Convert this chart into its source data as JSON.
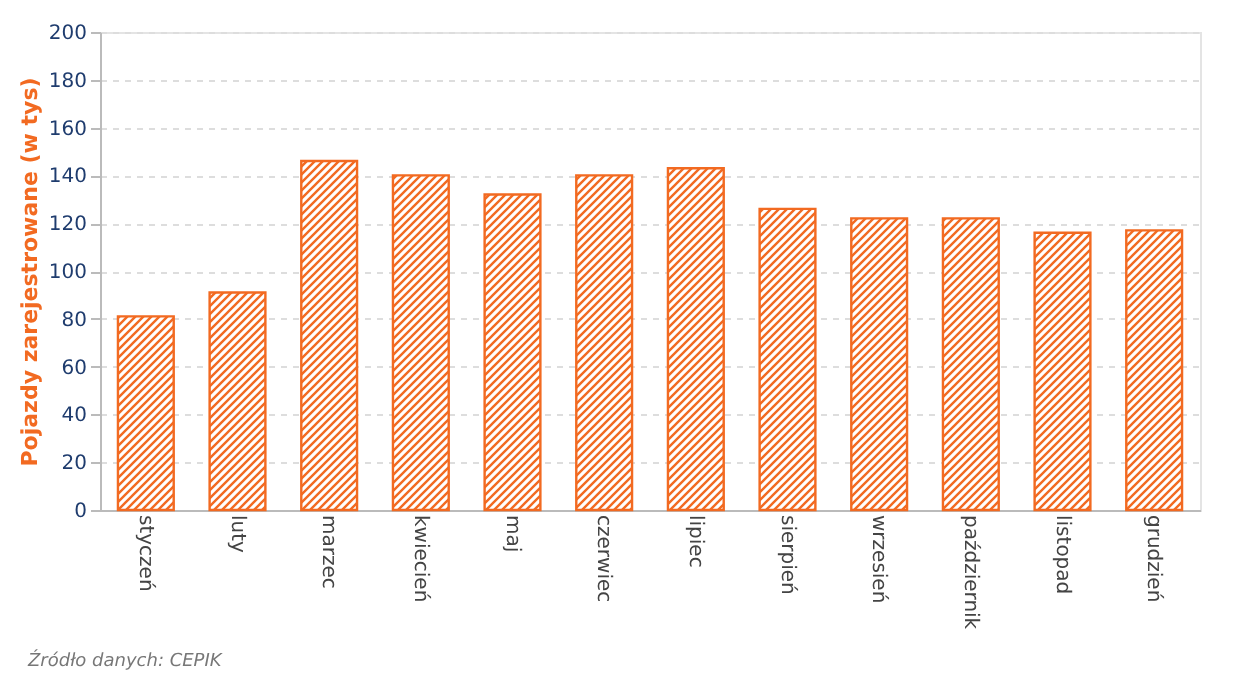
{
  "chart_data": {
    "type": "bar",
    "ylabel": "Pojazdy zarejestrowane (w tys)",
    "categories": [
      "styczeń",
      "luty",
      "marzec",
      "kwiecień",
      "maj",
      "czerwiec",
      "lipiec",
      "sierpień",
      "wrzesień",
      "październik",
      "listopad",
      "grudzień"
    ],
    "values": [
      81,
      91,
      146,
      140,
      132,
      140,
      143,
      126,
      122,
      122,
      116,
      117
    ],
    "color": "#f26a21",
    "ylim": [
      0,
      200
    ],
    "yticks": [
      0,
      20,
      40,
      60,
      80,
      100,
      120,
      140,
      160,
      180,
      200
    ],
    "grid": "y",
    "annotations": [
      "Źródło danych: CEPIK"
    ]
  }
}
